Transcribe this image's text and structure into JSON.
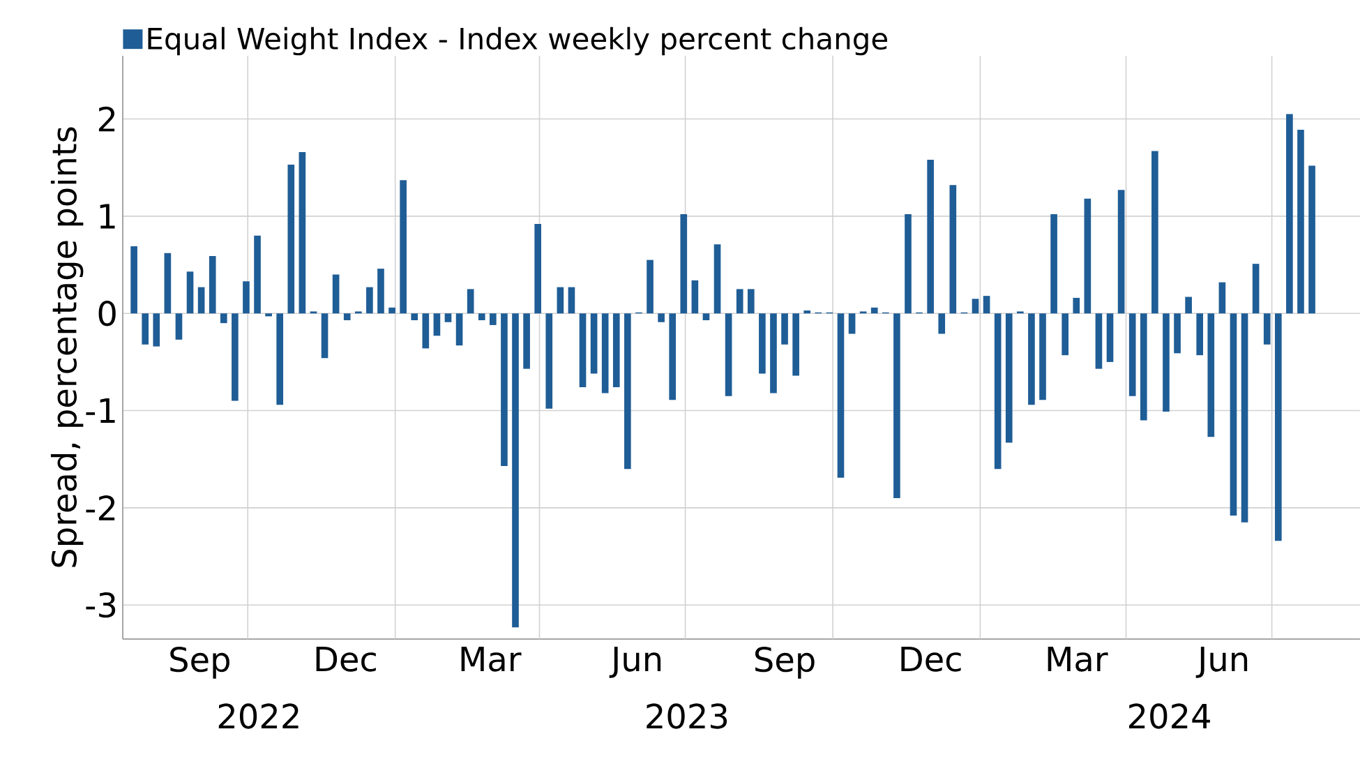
{
  "chart_data": {
    "type": "bar",
    "ylabel": "Spread, percentage points",
    "x": [
      "2022-07-22",
      "2022-07-29",
      "2022-08-05",
      "2022-08-12",
      "2022-08-19",
      "2022-08-26",
      "2022-09-02",
      "2022-09-09",
      "2022-09-16",
      "2022-09-23",
      "2022-09-30",
      "2022-10-07",
      "2022-10-14",
      "2022-10-21",
      "2022-10-28",
      "2022-11-04",
      "2022-11-11",
      "2022-11-18",
      "2022-11-25",
      "2022-12-02",
      "2022-12-09",
      "2022-12-16",
      "2022-12-23",
      "2022-12-30",
      "2023-01-06",
      "2023-01-13",
      "2023-01-20",
      "2023-01-27",
      "2023-02-03",
      "2023-02-10",
      "2023-02-17",
      "2023-02-24",
      "2023-03-03",
      "2023-03-10",
      "2023-03-17",
      "2023-03-24",
      "2023-03-31",
      "2023-04-07",
      "2023-04-14",
      "2023-04-21",
      "2023-04-28",
      "2023-05-05",
      "2023-05-12",
      "2023-05-19",
      "2023-05-26",
      "2023-06-02",
      "2023-06-09",
      "2023-06-16",
      "2023-06-23",
      "2023-06-30",
      "2023-07-07",
      "2023-07-14",
      "2023-07-21",
      "2023-07-28",
      "2023-08-04",
      "2023-08-11",
      "2023-08-18",
      "2023-08-25",
      "2023-09-01",
      "2023-09-08",
      "2023-09-15",
      "2023-09-22",
      "2023-09-29",
      "2023-10-06",
      "2023-10-13",
      "2023-10-20",
      "2023-10-27",
      "2023-11-03",
      "2023-11-10",
      "2023-11-17",
      "2023-11-24",
      "2023-12-01",
      "2023-12-08",
      "2023-12-15",
      "2023-12-22",
      "2023-12-29",
      "2024-01-05",
      "2024-01-12",
      "2024-01-19",
      "2024-01-26",
      "2024-02-02",
      "2024-02-09",
      "2024-02-16",
      "2024-02-23",
      "2024-03-01",
      "2024-03-08",
      "2024-03-15",
      "2024-03-22",
      "2024-03-29",
      "2024-04-05",
      "2024-04-12",
      "2024-04-19",
      "2024-04-26",
      "2024-05-03",
      "2024-05-10",
      "2024-05-17",
      "2024-05-24",
      "2024-05-31",
      "2024-06-07",
      "2024-06-14",
      "2024-06-21",
      "2024-06-28",
      "2024-07-05",
      "2024-07-12",
      "2024-07-19",
      "2024-07-26"
    ],
    "series": [
      {
        "name": "Equal Weight Index - Index weekly percent change",
        "color": "#1f5d96",
        "values": [
          0.69,
          -0.32,
          -0.34,
          0.62,
          -0.27,
          0.43,
          0.27,
          0.59,
          -0.1,
          -0.9,
          0.33,
          0.8,
          -0.03,
          -0.94,
          1.53,
          1.66,
          0.02,
          -0.46,
          0.4,
          -0.07,
          0.02,
          0.27,
          0.46,
          0.06,
          1.37,
          -0.07,
          -0.36,
          -0.23,
          -0.09,
          -0.33,
          0.25,
          -0.07,
          -0.12,
          -1.57,
          -3.23,
          -0.57,
          0.92,
          -0.98,
          0.27,
          0.27,
          -0.76,
          -0.62,
          -0.82,
          -0.76,
          -1.6,
          0.01,
          0.55,
          -0.09,
          -0.89,
          1.02,
          0.34,
          -0.07,
          0.71,
          -0.85,
          0.25,
          0.25,
          -0.62,
          -0.82,
          -0.32,
          -0.64,
          0.03,
          0.01,
          0.01,
          -1.69,
          -0.21,
          0.02,
          0.06,
          0.01,
          -1.9,
          1.02,
          0.01,
          1.58,
          -0.21,
          1.32,
          0.01,
          0.15,
          0.18,
          -1.6,
          -1.33,
          0.02,
          -0.94,
          -0.89,
          1.02,
          -0.43,
          0.16,
          1.18,
          -0.57,
          -0.5,
          1.27,
          -0.85,
          -1.1,
          1.67,
          -1.01,
          -0.41,
          0.17,
          -0.43,
          -1.27,
          0.32,
          -2.08,
          -2.15,
          0.51,
          -0.32,
          -2.34,
          2.05,
          1.89,
          1.52
        ]
      }
    ],
    "xlim": [
      "2022-07-15",
      "2024-08-25"
    ],
    "ylim": [
      -3.35,
      2.65
    ],
    "yticks": [
      -3,
      -2,
      -1,
      0,
      1,
      2
    ],
    "xticks": [
      {
        "value": "2022-09-01",
        "label": "Sep"
      },
      {
        "value": "2022-10-01",
        "label": null
      },
      {
        "value": "2022-12-01",
        "label": "Dec"
      },
      {
        "value": "2023-01-01",
        "label": null
      },
      {
        "value": "2023-03-01",
        "label": "Mar"
      },
      {
        "value": "2023-04-01",
        "label": null
      },
      {
        "value": "2023-06-01",
        "label": "Jun"
      },
      {
        "value": "2023-07-01",
        "label": null
      },
      {
        "value": "2023-09-01",
        "label": "Sep"
      },
      {
        "value": "2023-10-01",
        "label": null
      },
      {
        "value": "2023-12-01",
        "label": "Dec"
      },
      {
        "value": "2024-01-01",
        "label": null
      },
      {
        "value": "2024-03-01",
        "label": "Mar"
      },
      {
        "value": "2024-04-01",
        "label": null
      },
      {
        "value": "2024-06-01",
        "label": "Jun"
      },
      {
        "value": "2024-07-01",
        "label": null
      }
    ],
    "annotations": [
      "2022",
      "2023",
      "2024"
    ],
    "grid": true,
    "legend": "top left"
  }
}
